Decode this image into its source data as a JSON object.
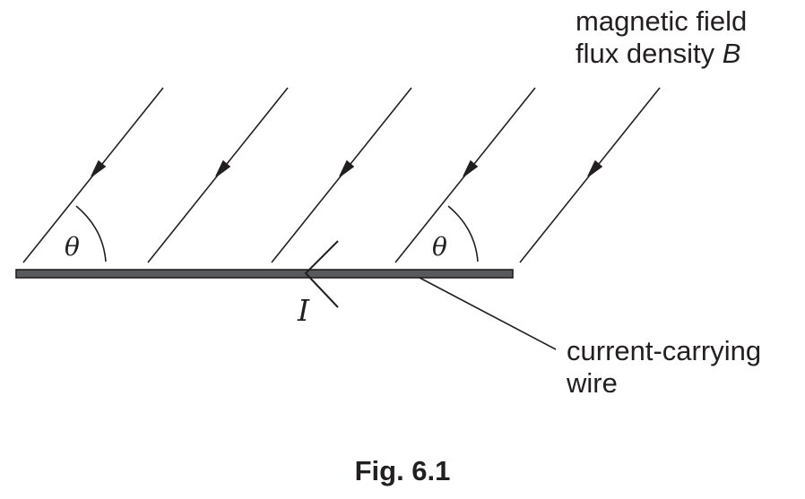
{
  "field_label": {
    "line1": "magnetic field",
    "line2_prefix": "flux density ",
    "line2_symbol": "B"
  },
  "wire_label": {
    "line1": "current-carrying",
    "line2": "wire"
  },
  "angle_symbol": "θ",
  "current_symbol": "I",
  "caption": "Fig. 6.1",
  "colors": {
    "ink": "#231f20",
    "wire_fill": "#58595b"
  }
}
